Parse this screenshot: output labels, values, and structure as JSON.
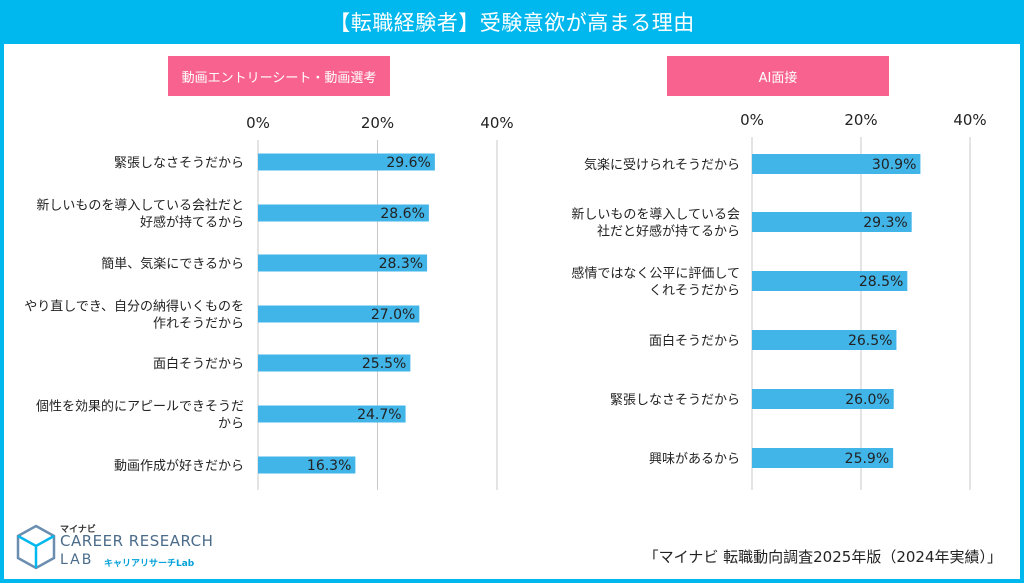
{
  "header": {
    "title": "【転職経験者】受験意欲が高まる理由"
  },
  "colors": {
    "header": "#00b8ee",
    "tag": "#f7638e",
    "bar": "#41b4e8"
  },
  "chart_data": [
    {
      "type": "bar",
      "orientation": "horizontal",
      "tag": "動画エントリーシート・動画選考",
      "categories": [
        "緊張しなさそうだから",
        "新しいものを導入している会社だと\n好感が持てるから",
        "簡単、気楽にできるから",
        "やり直しでき、自分の納得いくものを\n作れそうだから",
        "面白そうだから",
        "個性を効果的にアピールできそうだ\nから",
        "動画作成が好きだから"
      ],
      "values": [
        29.6,
        28.6,
        28.3,
        27.0,
        25.5,
        24.7,
        16.3
      ],
      "value_labels": [
        "29.6%",
        "28.6%",
        "28.3%",
        "27.0%",
        "25.5%",
        "24.7%",
        "16.3%"
      ],
      "xlim": [
        0,
        40
      ],
      "ticks": [
        "0%",
        "20%",
        "40%"
      ],
      "grid": true
    },
    {
      "type": "bar",
      "orientation": "horizontal",
      "tag": "AI面接",
      "categories": [
        "気楽に受けられそうだから",
        "新しいものを導入している会\n社だと好感が持てるから",
        "感情ではなく公平に評価して\nくれそうだから",
        "面白そうだから",
        "緊張しなさそうだから",
        "興味があるから"
      ],
      "values": [
        30.9,
        29.3,
        28.5,
        26.5,
        26.0,
        25.9
      ],
      "value_labels": [
        "30.9%",
        "29.3%",
        "28.5%",
        "26.5%",
        "26.0%",
        "25.9%"
      ],
      "xlim": [
        0,
        40
      ],
      "ticks": [
        "0%",
        "20%",
        "40%"
      ],
      "grid": true
    }
  ],
  "logo": {
    "top": "マイナビ",
    "main": "CAREER RESEARCH",
    "lab": "LAB",
    "kana": "キャリアリサーチLab"
  },
  "source": "「マイナビ 転職動向調査2025年版（2024年実績）」"
}
